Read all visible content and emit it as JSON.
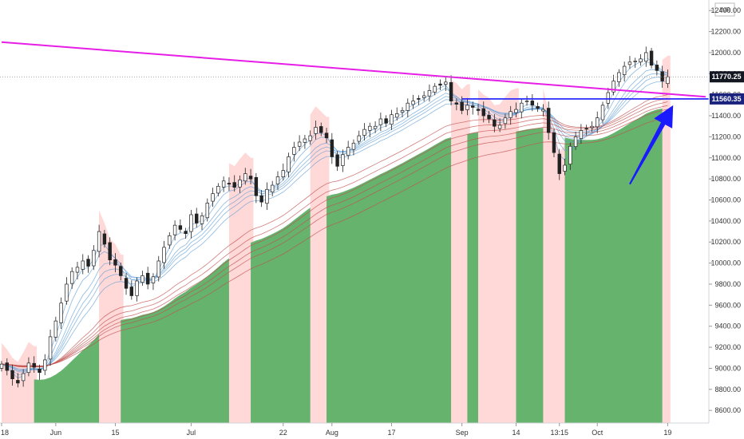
{
  "chart_data": {
    "type": "candlestick",
    "currency": "INR",
    "ylim": [
      8480,
      12500
    ],
    "y_ticks": [
      8600,
      8800,
      9000,
      9200,
      9400,
      9600,
      9800,
      10000,
      10200,
      10400,
      10600,
      10800,
      11000,
      11200,
      11400,
      11600,
      11800,
      12000,
      12200,
      12400
    ],
    "x_labels": [
      {
        "label": "18",
        "x": 0
      },
      {
        "label": "Jun",
        "x": 10
      },
      {
        "label": "15",
        "x": 21
      },
      {
        "label": "Jul",
        "x": 35
      },
      {
        "label": "22",
        "x": 52
      },
      {
        "label": "Aug",
        "x": 61
      },
      {
        "label": "17",
        "x": 72
      },
      {
        "label": "Sep",
        "x": 85
      },
      {
        "label": "14",
        "x": 95
      },
      {
        "label": "13:15",
        "x": 103
      },
      {
        "label": "Oct",
        "x": 110
      },
      {
        "label": "19",
        "x": 123
      }
    ],
    "x_range": [
      0,
      125
    ],
    "price_badges": [
      {
        "value": "11770.25",
        "y": 11770,
        "color": "#131722"
      },
      {
        "value": "11560.35",
        "y": 11560,
        "color": "#1a237e"
      }
    ],
    "trendline": {
      "color": "#e61ee6",
      "from": [
        0,
        12100
      ],
      "to": [
        130,
        11580
      ]
    },
    "support_line": {
      "color": "#1a1aff",
      "y": 11560,
      "x_from": 85,
      "x_to": 130
    },
    "last_price_line": {
      "y": 11770,
      "color": "#888888"
    },
    "arrow": {
      "color": "#1a1aff",
      "from": [
        116,
        10750
      ],
      "to": [
        124,
        11500
      ]
    },
    "closes": [
      9040,
      8980,
      8900,
      8860,
      8950,
      9050,
      9010,
      8960,
      9080,
      9300,
      9450,
      9620,
      9800,
      9920,
      9960,
      10020,
      9970,
      10120,
      10300,
      10180,
      10030,
      9980,
      9880,
      9760,
      9690,
      9830,
      9880,
      9800,
      9870,
      10020,
      10150,
      10260,
      10360,
      10320,
      10280,
      10460,
      10380,
      10450,
      10570,
      10660,
      10730,
      10780,
      10750,
      10720,
      10790,
      10850,
      10800,
      10640,
      10580,
      10700,
      10740,
      10820,
      10880,
      11010,
      11100,
      11150,
      11180,
      11210,
      11290,
      11240,
      11190,
      11010,
      10920,
      11030,
      11100,
      11140,
      11210,
      11270,
      11300,
      11300,
      11370,
      11330,
      11410,
      11420,
      11450,
      11520,
      11540,
      11560,
      11590,
      11640,
      11680,
      11690,
      11720,
      11540,
      11510,
      11450,
      11500,
      11480,
      11450,
      11400,
      11370,
      11300,
      11310,
      11380,
      11440,
      11460,
      11520,
      11540,
      11500,
      11470,
      11460,
      11240,
      11050,
      10850,
      10930,
      11110,
      11200,
      11260,
      11280,
      11300,
      11380,
      11500,
      11620,
      11730,
      11810,
      11870,
      11910,
      11920,
      11940,
      12000,
      11880,
      11830,
      11730,
      11770
    ],
    "zones": [
      {
        "from": 0,
        "to": 6,
        "color": "#ffd8d8"
      },
      {
        "from": 6,
        "to": 18,
        "color": "#66b36e"
      },
      {
        "from": 18,
        "to": 22,
        "color": "#ffd8d8"
      },
      {
        "from": 22,
        "to": 42,
        "color": "#66b36e"
      },
      {
        "from": 42,
        "to": 46,
        "color": "#ffd8d8"
      },
      {
        "from": 46,
        "to": 57,
        "color": "#66b36e"
      },
      {
        "from": 57,
        "to": 60,
        "color": "#ffd8d8"
      },
      {
        "from": 60,
        "to": 83,
        "color": "#66b36e"
      },
      {
        "from": 83,
        "to": 86,
        "color": "#ffd8d8"
      },
      {
        "from": 86,
        "to": 88,
        "color": "#66b36e"
      },
      {
        "from": 88,
        "to": 95,
        "color": "#ffd8d8"
      },
      {
        "from": 95,
        "to": 100,
        "color": "#66b36e"
      },
      {
        "from": 100,
        "to": 104,
        "color": "#ffd8d8"
      },
      {
        "from": 104,
        "to": 122,
        "color": "#66b36e"
      },
      {
        "from": 122,
        "to": 124,
        "color": "#ffd8d8"
      }
    ]
  }
}
